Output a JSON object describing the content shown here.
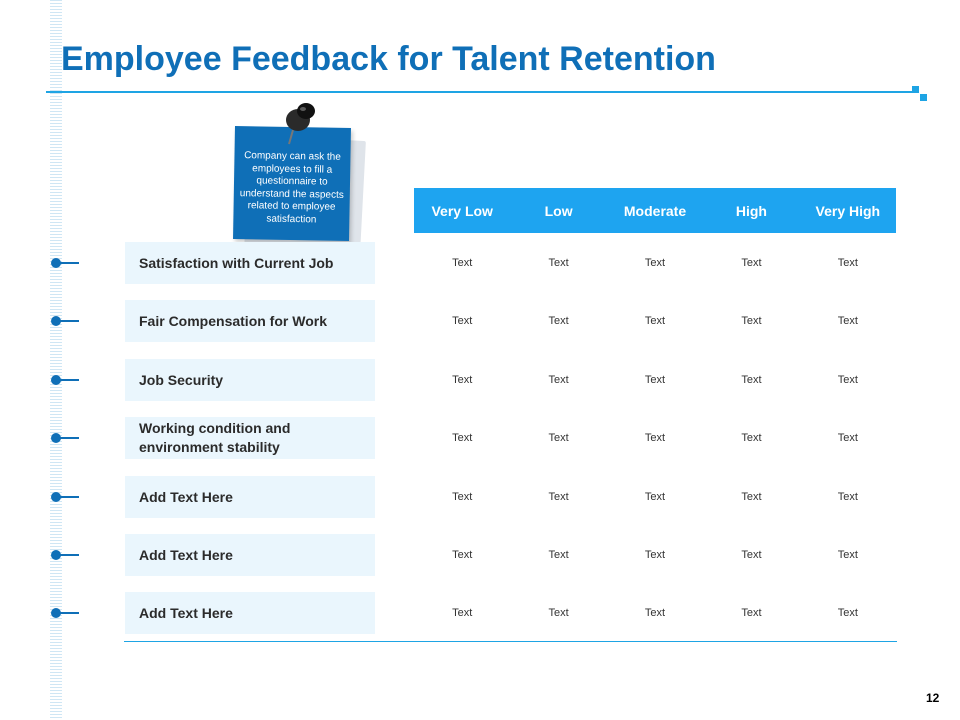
{
  "slide": {
    "title": "Employee Feedback for Talent Retention",
    "page_number": "12",
    "accent_color": "#1ea4f0",
    "title_color": "#0f6fb7"
  },
  "note": {
    "text": "Company can ask the employees to fill a questionnaire to understand the aspects related to employee satisfaction",
    "icon": "pushpin-icon"
  },
  "table": {
    "columns": [
      "Very Low",
      "Low",
      "Moderate",
      "High",
      "Very High"
    ],
    "rows": [
      {
        "label": "Satisfaction with Current Job",
        "cells": [
          "Text",
          "Text",
          "Text",
          "Text",
          "Text"
        ]
      },
      {
        "label": "Fair Compensation for Work",
        "cells": [
          "Text",
          "Text",
          "Text",
          "Text",
          "Text"
        ]
      },
      {
        "label": "Job Security",
        "cells": [
          "Text",
          "Text",
          "Text",
          "Text",
          "Text"
        ]
      },
      {
        "label": "Working condition and environment stability",
        "cells": [
          "Text",
          "Text",
          "Text",
          "Text",
          "Text"
        ]
      },
      {
        "label": "Add Text Here",
        "cells": [
          "Text",
          "Text",
          "Text",
          "Text",
          "Text"
        ]
      },
      {
        "label": "Add Text Here",
        "cells": [
          "Text",
          "Text",
          "Text",
          "Text",
          "Text"
        ]
      },
      {
        "label": "Add Text Here",
        "cells": [
          "Text",
          "Text",
          "Text",
          "Text",
          "Text"
        ]
      }
    ]
  }
}
